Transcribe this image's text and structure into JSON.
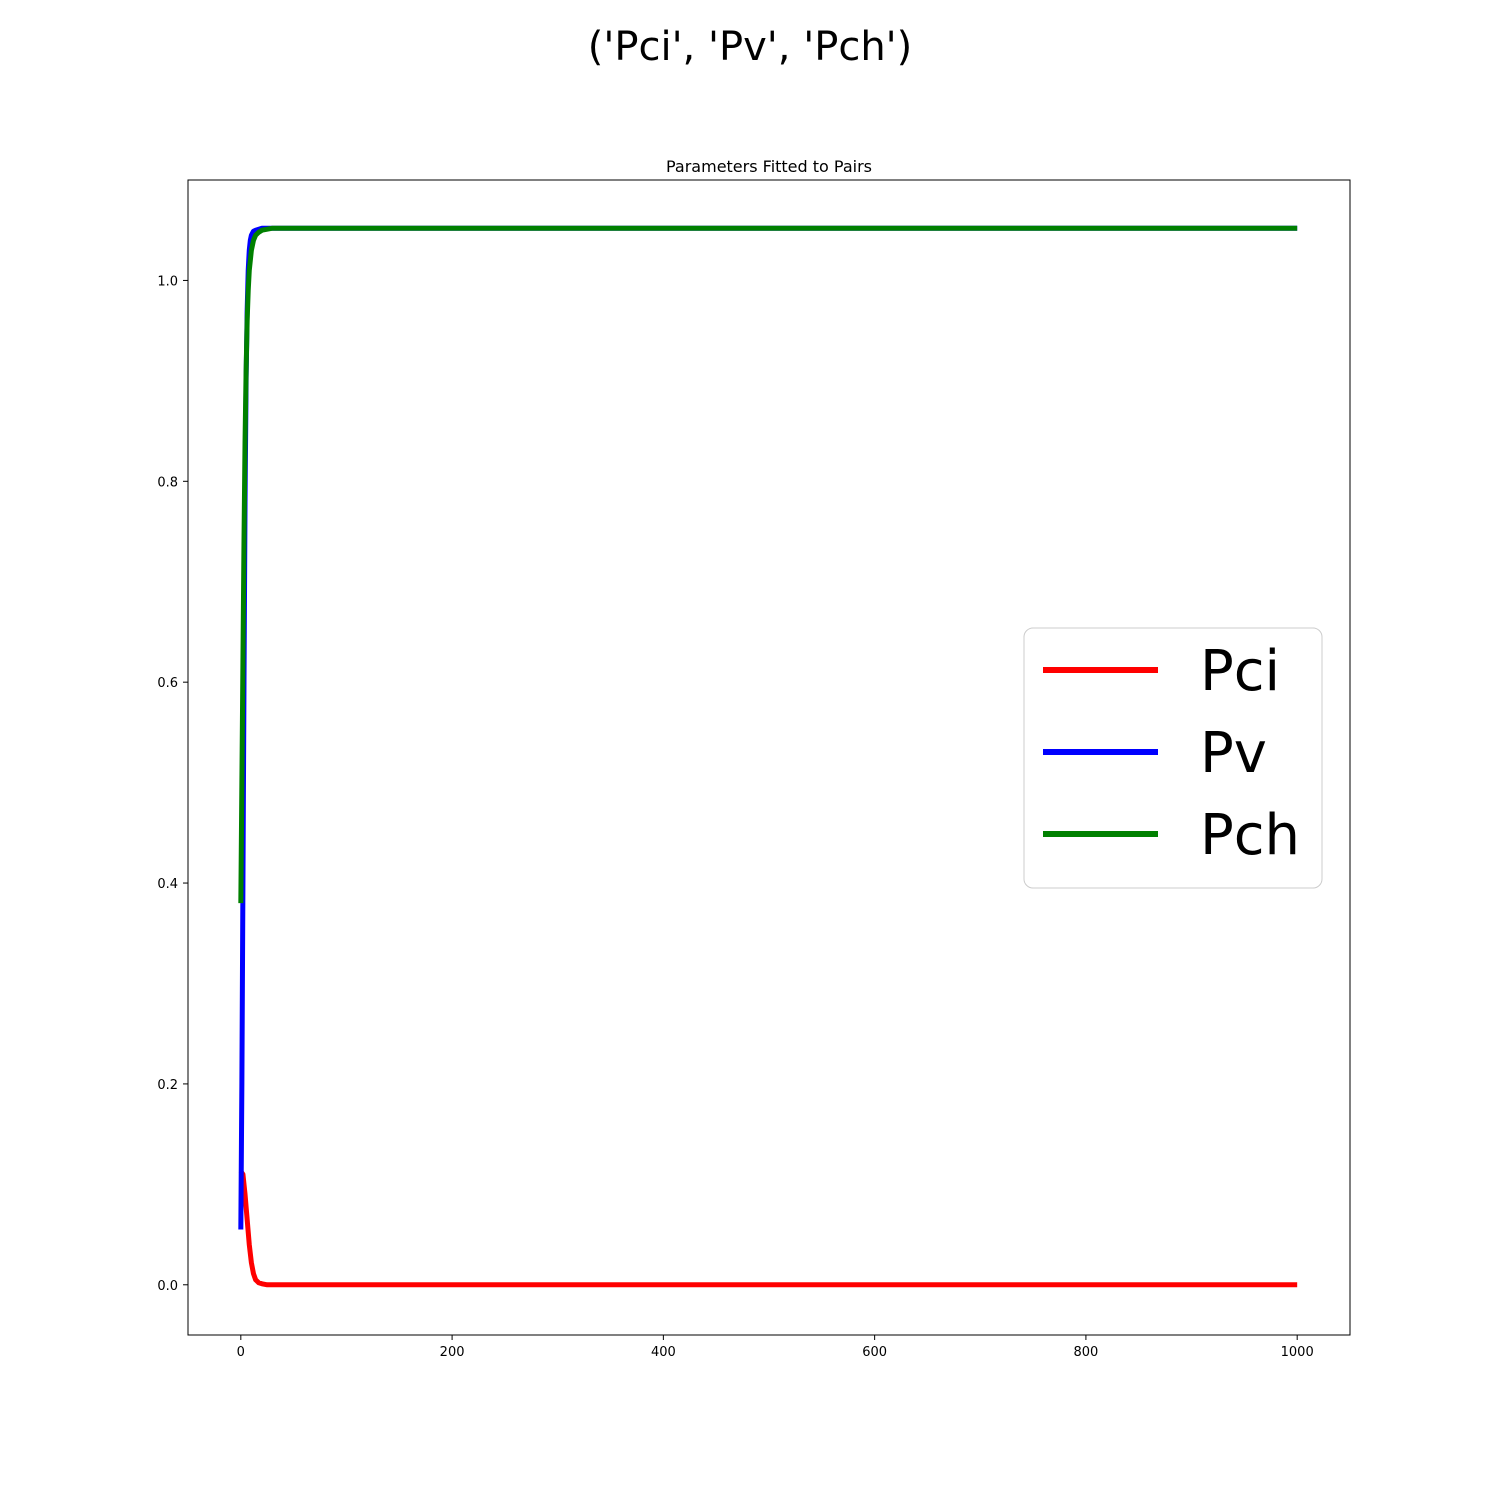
{
  "figure": {
    "suptitle": "('Pci', 'Pv', 'Pch')"
  },
  "chart_data": {
    "type": "line",
    "title": "Parameters Fitted to Pairs",
    "xlabel": "",
    "ylabel": "",
    "xlim": [
      -50,
      1050
    ],
    "ylim": [
      -0.05,
      1.1
    ],
    "xticks": [
      0,
      200,
      400,
      600,
      800,
      1000
    ],
    "yticks": [
      0.0,
      0.2,
      0.4,
      0.6,
      0.8,
      1.0
    ],
    "xtick_labels": [
      "0",
      "200",
      "400",
      "600",
      "800",
      "1000"
    ],
    "ytick_labels": [
      "0.0",
      "0.2",
      "0.4",
      "0.6",
      "0.8",
      "1.0"
    ],
    "grid": false,
    "legend_position": "center-right",
    "series": [
      {
        "name": "Pci",
        "color": "#ff0000",
        "x": [
          0,
          2,
          4,
          6,
          8,
          10,
          12,
          14,
          17,
          20,
          25,
          30,
          40,
          60,
          100,
          200,
          400,
          600,
          800,
          1000
        ],
        "y": [
          0.113,
          0.11,
          0.09,
          0.065,
          0.04,
          0.022,
          0.011,
          0.005,
          0.002,
          0.001,
          0.0,
          0.0,
          0.0,
          0.0,
          0.0,
          0.0,
          0.0,
          0.0,
          0.0,
          0.0
        ]
      },
      {
        "name": "Pv",
        "color": "#0000ff",
        "x": [
          0,
          1,
          2,
          3,
          4,
          5,
          6,
          7,
          8,
          9,
          10,
          12,
          14,
          17,
          20,
          25,
          30,
          40,
          60,
          100,
          200,
          400,
          600,
          800,
          1000
        ],
        "y": [
          0.055,
          0.2,
          0.4,
          0.6,
          0.78,
          0.9,
          0.97,
          1.01,
          1.03,
          1.04,
          1.045,
          1.049,
          1.05,
          1.051,
          1.052,
          1.052,
          1.052,
          1.052,
          1.052,
          1.052,
          1.052,
          1.052,
          1.052,
          1.052,
          1.052
        ]
      },
      {
        "name": "Pch",
        "color": "#008000",
        "x": [
          0,
          1,
          2,
          3,
          4,
          5,
          6,
          7,
          8,
          10,
          12,
          14,
          17,
          20,
          25,
          30,
          35,
          40,
          50,
          60,
          100,
          200,
          400,
          600,
          800,
          1000
        ],
        "y": [
          0.38,
          0.5,
          0.62,
          0.74,
          0.84,
          0.91,
          0.96,
          0.99,
          1.01,
          1.03,
          1.04,
          1.045,
          1.048,
          1.05,
          1.051,
          1.052,
          1.052,
          1.052,
          1.052,
          1.052,
          1.052,
          1.052,
          1.052,
          1.052,
          1.052,
          1.052
        ]
      }
    ]
  }
}
